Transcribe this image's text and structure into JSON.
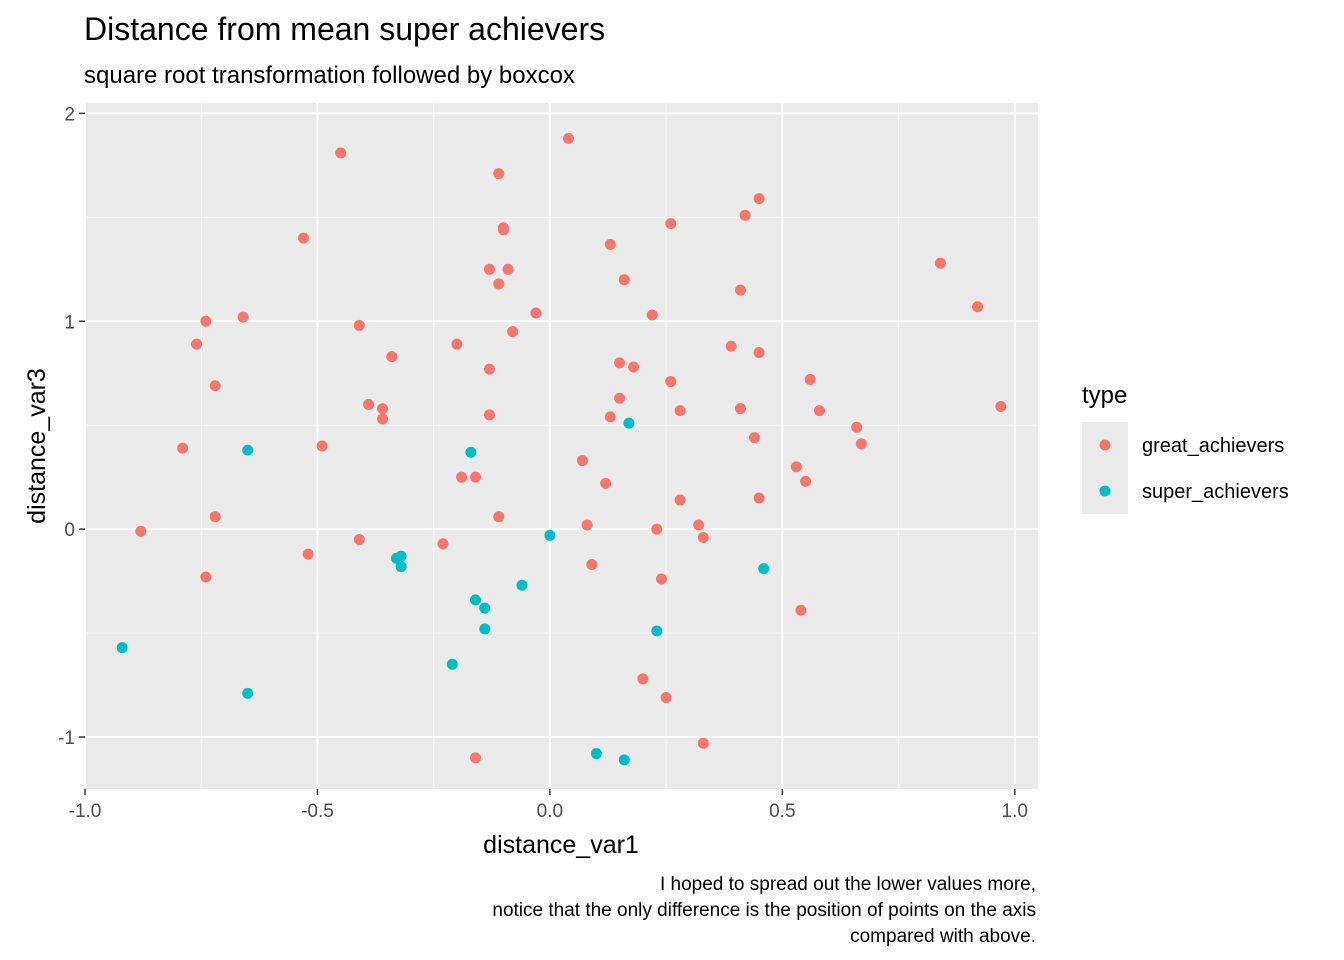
{
  "chart_data": {
    "type": "scatter",
    "title": "Distance from mean super achievers",
    "subtitle": "square root transformation followed by boxcox",
    "xlabel": "distance_var1",
    "ylabel": "distance_var3",
    "xlim": [
      -1.0,
      1.05
    ],
    "ylim": [
      -1.25,
      2.05
    ],
    "xticks": [
      -1.0,
      -0.5,
      0.0,
      0.5,
      1.0
    ],
    "xtick_labels": [
      "-1.0",
      "-0.5",
      "0.0",
      "0.5",
      "1.0"
    ],
    "yticks": [
      -1,
      0,
      1,
      2
    ],
    "ytick_labels": [
      "-1",
      "0",
      "1",
      "2"
    ],
    "grid": true,
    "legend": {
      "title": "type",
      "position": "right"
    },
    "caption": [
      "I hoped to spread out the lower values more,",
      "notice that the only difference is the position of points on the axis",
      "compared with above."
    ],
    "series": [
      {
        "name": "great_achievers",
        "color": "#F8766D",
        "points": [
          [
            0.04,
            1.88
          ],
          [
            -0.45,
            1.81
          ],
          [
            -0.11,
            1.71
          ],
          [
            0.45,
            1.59
          ],
          [
            0.42,
            1.51
          ],
          [
            0.26,
            1.47
          ],
          [
            -0.1,
            1.45
          ],
          [
            -0.1,
            1.44
          ],
          [
            -0.53,
            1.4
          ],
          [
            0.13,
            1.37
          ],
          [
            0.84,
            1.28
          ],
          [
            -0.13,
            1.25
          ],
          [
            -0.09,
            1.25
          ],
          [
            0.16,
            1.2
          ],
          [
            -0.11,
            1.18
          ],
          [
            0.41,
            1.15
          ],
          [
            0.92,
            1.07
          ],
          [
            -0.03,
            1.04
          ],
          [
            0.22,
            1.03
          ],
          [
            -0.66,
            1.02
          ],
          [
            -0.74,
            1.0
          ],
          [
            -0.41,
            0.98
          ],
          [
            -0.08,
            0.95
          ],
          [
            -0.76,
            0.89
          ],
          [
            -0.2,
            0.89
          ],
          [
            0.39,
            0.88
          ],
          [
            0.45,
            0.85
          ],
          [
            -0.34,
            0.83
          ],
          [
            0.15,
            0.8
          ],
          [
            0.18,
            0.78
          ],
          [
            -0.13,
            0.77
          ],
          [
            0.56,
            0.72
          ],
          [
            0.26,
            0.71
          ],
          [
            -0.72,
            0.69
          ],
          [
            0.15,
            0.63
          ],
          [
            -0.39,
            0.6
          ],
          [
            -0.36,
            0.58
          ],
          [
            0.97,
            0.59
          ],
          [
            0.41,
            0.58
          ],
          [
            0.28,
            0.57
          ],
          [
            0.58,
            0.57
          ],
          [
            -0.13,
            0.55
          ],
          [
            0.13,
            0.54
          ],
          [
            -0.36,
            0.53
          ],
          [
            0.66,
            0.49
          ],
          [
            0.44,
            0.44
          ],
          [
            0.67,
            0.41
          ],
          [
            -0.49,
            0.4
          ],
          [
            -0.79,
            0.39
          ],
          [
            0.07,
            0.33
          ],
          [
            0.53,
            0.3
          ],
          [
            -0.16,
            0.25
          ],
          [
            -0.19,
            0.25
          ],
          [
            0.55,
            0.23
          ],
          [
            0.12,
            0.22
          ],
          [
            0.28,
            0.14
          ],
          [
            0.45,
            0.15
          ],
          [
            -0.72,
            0.06
          ],
          [
            -0.11,
            0.06
          ],
          [
            0.08,
            0.02
          ],
          [
            0.32,
            0.02
          ],
          [
            0.23,
            0.0
          ],
          [
            -0.88,
            -0.01
          ],
          [
            0.33,
            -0.04
          ],
          [
            -0.41,
            -0.05
          ],
          [
            -0.23,
            -0.07
          ],
          [
            -0.52,
            -0.12
          ],
          [
            0.09,
            -0.17
          ],
          [
            -0.74,
            -0.23
          ],
          [
            0.24,
            -0.24
          ],
          [
            0.54,
            -0.39
          ],
          [
            0.2,
            -0.72
          ],
          [
            0.25,
            -0.81
          ],
          [
            0.33,
            -1.03
          ],
          [
            -0.16,
            -1.1
          ]
        ]
      },
      {
        "name": "super_achievers",
        "color": "#00BFC4",
        "points": [
          [
            0.17,
            0.51
          ],
          [
            -0.65,
            0.38
          ],
          [
            -0.17,
            0.37
          ],
          [
            0.0,
            -0.03
          ],
          [
            -0.32,
            -0.13
          ],
          [
            -0.33,
            -0.14
          ],
          [
            -0.32,
            -0.18
          ],
          [
            0.46,
            -0.19
          ],
          [
            -0.06,
            -0.27
          ],
          [
            -0.16,
            -0.34
          ],
          [
            -0.14,
            -0.38
          ],
          [
            0.23,
            -0.49
          ],
          [
            -0.14,
            -0.48
          ],
          [
            -0.92,
            -0.57
          ],
          [
            -0.21,
            -0.65
          ],
          [
            -0.65,
            -0.79
          ],
          [
            0.1,
            -1.08
          ],
          [
            0.16,
            -1.11
          ]
        ]
      }
    ]
  }
}
